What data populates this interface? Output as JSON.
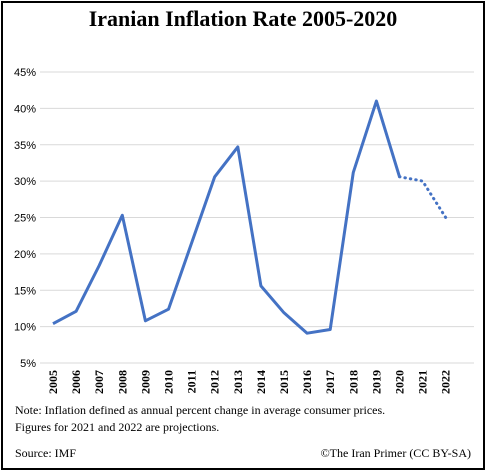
{
  "chart_data": {
    "type": "line",
    "title": "Iranian Inflation Rate 2005-2020",
    "categories": [
      "2005",
      "2006",
      "2007",
      "2008",
      "2009",
      "2010",
      "2011",
      "2012",
      "2013",
      "2014",
      "2015",
      "2016",
      "2017",
      "2018",
      "2019",
      "2020",
      "2021",
      "2022"
    ],
    "series": [
      {
        "name": "Inflation",
        "values": [
          10.4,
          12.1,
          18.4,
          25.3,
          10.8,
          12.4,
          21.5,
          30.6,
          34.7,
          15.6,
          11.9,
          9.1,
          9.6,
          31.2,
          41.0,
          30.6,
          null,
          null
        ],
        "color": "#4472C4",
        "style": "solid"
      },
      {
        "name": "Projection",
        "values": [
          null,
          null,
          null,
          null,
          null,
          null,
          null,
          null,
          null,
          null,
          null,
          null,
          null,
          null,
          null,
          30.6,
          30.0,
          25.0
        ],
        "color": "#4472C4",
        "style": "dotted"
      }
    ],
    "ylim": [
      5,
      45
    ],
    "yticks": [
      "5%",
      "10%",
      "15%",
      "20%",
      "25%",
      "30%",
      "35%",
      "40%",
      "45%"
    ],
    "ytick_values": [
      5,
      10,
      15,
      20,
      25,
      30,
      35,
      40,
      45
    ],
    "grid": true,
    "xlabel": "",
    "ylabel": ""
  },
  "note_line1": "Note: Inflation defined as annual percent change in average consumer prices.",
  "note_line2": "Figures for 2021  and 2022  are projections.",
  "source": "Source: IMF",
  "credit": "©The Iran Primer  (CC  BY-SA)"
}
